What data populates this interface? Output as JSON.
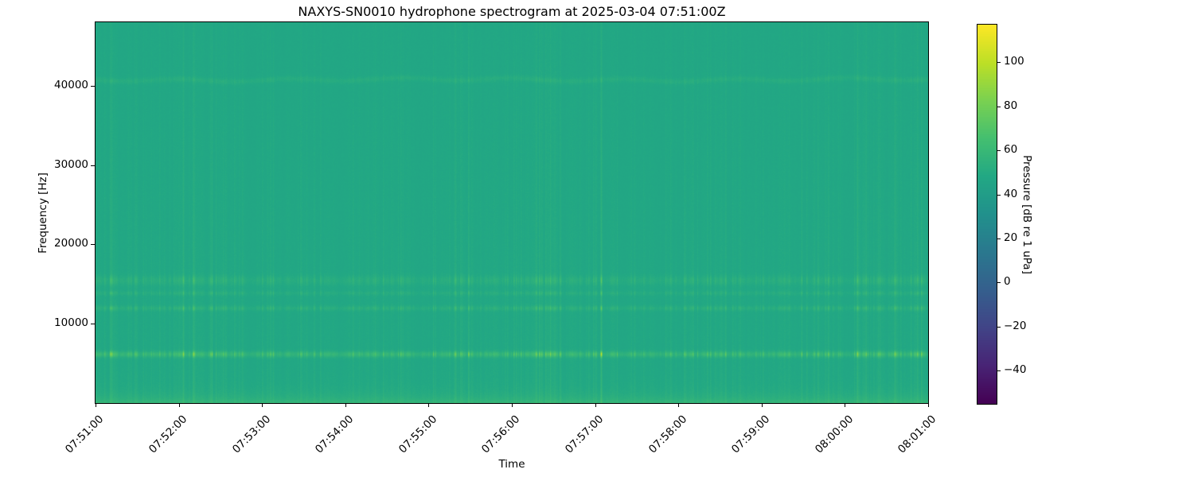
{
  "figure": {
    "title": "NAXYS-SN0010 hydrophone spectrogram at 2025-03-04 07:51:00Z"
  },
  "axes": {
    "xlabel": "Time",
    "ylabel": "Frequency [Hz]",
    "x_tick_labels": [
      "07:51:00",
      "07:52:00",
      "07:53:00",
      "07:54:00",
      "07:55:00",
      "07:56:00",
      "07:57:00",
      "07:58:00",
      "07:59:00",
      "08:00:00",
      "08:01:00"
    ],
    "y_ticks": [
      {
        "value": 10000,
        "label": "10000"
      },
      {
        "value": 20000,
        "label": "20000"
      },
      {
        "value": 30000,
        "label": "30000"
      },
      {
        "value": 40000,
        "label": "40000"
      }
    ]
  },
  "colorbar": {
    "label": "Pressure [dB re 1 uPa]",
    "vmin": -55,
    "vmax": 117,
    "colormap": "viridis",
    "ticks": [
      {
        "value": 100,
        "label": "100"
      },
      {
        "value": 80,
        "label": "80"
      },
      {
        "value": 60,
        "label": "60"
      },
      {
        "value": 40,
        "label": "40"
      },
      {
        "value": 20,
        "label": "20"
      },
      {
        "value": 0,
        "label": "0"
      },
      {
        "value": -20,
        "label": "−20"
      },
      {
        "value": -40,
        "label": "−40"
      }
    ],
    "viridis_stops": [
      "#440154",
      "#482475",
      "#414487",
      "#355f8d",
      "#2a788e",
      "#21918c",
      "#22a884",
      "#44bf70",
      "#7ad151",
      "#bddf26",
      "#fde725"
    ]
  },
  "chart_data": {
    "type": "heatmap",
    "subtype": "spectrogram",
    "title": "NAXYS-SN0010 hydrophone spectrogram at 2025-03-04 07:51:00Z",
    "xlabel": "Time",
    "ylabel": "Frequency [Hz]",
    "x_range": [
      "07:51:00",
      "08:01:00"
    ],
    "x_span_minutes": 10,
    "x_tick_labels": [
      "07:51:00",
      "07:52:00",
      "07:53:00",
      "07:54:00",
      "07:55:00",
      "07:56:00",
      "07:57:00",
      "07:58:00",
      "07:59:00",
      "08:00:00",
      "08:01:00"
    ],
    "y_range_hz": [
      0,
      48000
    ],
    "y_tick_values_hz": [
      10000,
      20000,
      30000,
      40000
    ],
    "value_range_db": [
      -55,
      117
    ],
    "colormap": "viridis",
    "legend_position": "colorbar-right",
    "grid": false,
    "background_level_db": 47,
    "low_freq_boost_db": 11,
    "bands": [
      {
        "center_hz": 6200,
        "sigma_hz": 260,
        "base_db": 5,
        "stripe_db": 27,
        "wavy": false
      },
      {
        "center_hz": 12000,
        "sigma_hz": 220,
        "base_db": 2,
        "stripe_db": 13,
        "wavy": false
      },
      {
        "center_hz": 13900,
        "sigma_hz": 200,
        "base_db": 1.5,
        "stripe_db": 9,
        "wavy": false
      },
      {
        "center_hz": 15500,
        "sigma_hz": 420,
        "base_db": 2,
        "stripe_db": 11,
        "wavy": false
      },
      {
        "center_hz": 40800,
        "sigma_hz": 260,
        "base_db": 3,
        "stripe_db": 3,
        "wavy": true
      }
    ],
    "stripe_gain_db_top": 3,
    "stripe_gain_db_bottom": 7,
    "pixel_noise_db": 1.1,
    "noise_seed": 20250304,
    "pulse_count": 430,
    "broad_pulse_count": 130,
    "pulse_base_weight": 0.8,
    "pulse_clusters": [
      {
        "minute": 0.2,
        "weight": 1.25,
        "sigma": 0.12
      },
      {
        "minute": 1.2,
        "weight": 1.45,
        "sigma": 0.3
      },
      {
        "minute": 3.0,
        "weight": 1.0,
        "sigma": 0.3
      },
      {
        "minute": 4.3,
        "weight": 1.25,
        "sigma": 0.35
      },
      {
        "minute": 5.35,
        "weight": 1.3,
        "sigma": 0.35
      },
      {
        "minute": 6.1,
        "weight": 1.35,
        "sigma": 0.2
      },
      {
        "minute": 7.3,
        "weight": 1.0,
        "sigma": 0.3
      },
      {
        "minute": 8.35,
        "weight": 1.05,
        "sigma": 0.3
      },
      {
        "minute": 9.25,
        "weight": 1.4,
        "sigma": 0.3
      },
      {
        "minute": 9.85,
        "weight": 1.2,
        "sigma": 0.15
      }
    ],
    "events": [
      {
        "minute": 0.19,
        "strength": 1.05
      },
      {
        "minute": 1.05,
        "strength": 1.15
      },
      {
        "minute": 1.18,
        "strength": 1.2
      },
      {
        "minute": 6.07,
        "strength": 1.5
      },
      {
        "minute": 9.15,
        "strength": 1.15
      },
      {
        "minute": 9.6,
        "strength": 1.05
      }
    ]
  }
}
